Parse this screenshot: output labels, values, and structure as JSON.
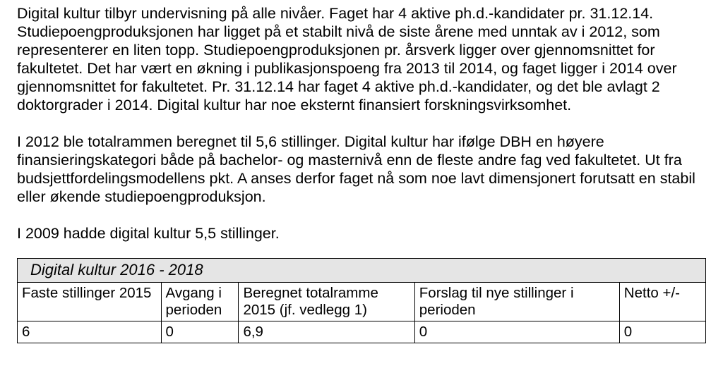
{
  "paragraphs": {
    "p1": "Digital kultur tilbyr undervisning på alle nivåer. Faget har 4 aktive ph.d.-kandidater pr. 31.12.14. Studiepoengproduksjonen har ligget på et stabilt nivå de siste årene med unntak av i 2012, som representerer en liten topp. Studiepoengproduksjonen pr. årsverk ligger over gjennomsnittet for fakultetet. Det har vært en økning i publikasjonspoeng fra 2013 til 2014, og faget ligger i 2014 over gjennomsnittet for fakultetet. Pr. 31.12.14 har faget 4 aktive ph.d.-kandidater, og det ble avlagt 2 doktorgrader i 2014. Digital kultur har noe eksternt finansiert forskningsvirksomhet.",
    "p2": "I 2012 ble totalrammen beregnet til 5,6 stillinger. Digital kultur har ifølge DBH en høyere finansieringskategori både på bachelor- og masternivå enn de fleste andre fag ved fakultetet. Ut fra budsjettfordelingsmodellens pkt. A anses derfor faget nå som noe lavt dimensjonert forutsatt en stabil eller økende studiepoengproduksjon.",
    "p3": "I 2009 hadde digital kultur 5,5 stillinger."
  },
  "table": {
    "title": "Digital kultur 2016 - 2018",
    "columns": [
      "Faste stillinger 2015",
      "Avgang i perioden",
      "Beregnet totalramme 2015 (jf. vedlegg 1)",
      "Forslag til nye stillinger i perioden",
      "Netto +/-"
    ],
    "rows": [
      [
        "6",
        "0",
        "6,9",
        "0",
        "0"
      ]
    ]
  }
}
